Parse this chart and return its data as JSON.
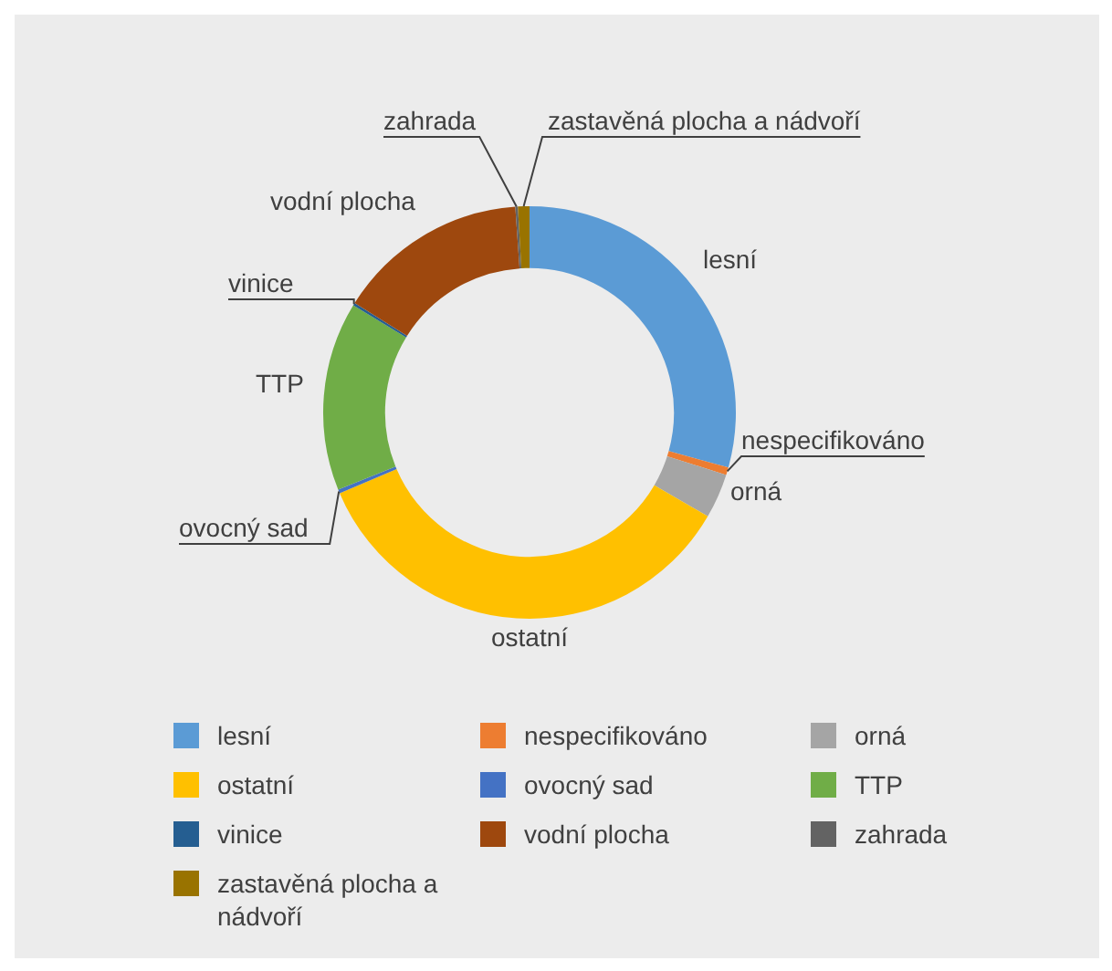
{
  "chart_data": {
    "type": "donut",
    "legend": "bottom",
    "categories": [
      "lesní",
      "nespecifikováno",
      "orná",
      "ostatní",
      "ovocný sad",
      "TTP",
      "vinice",
      "vodní plocha",
      "zahrada",
      "zastavěná plocha a nádvoří"
    ],
    "values": [
      29.3,
      0.6,
      3.5,
      35.2,
      0.3,
      14.8,
      0.2,
      15.0,
      0.2,
      0.9
    ],
    "colors": [
      "#5b9bd5",
      "#ed7d31",
      "#a5a5a5",
      "#ffc000",
      "#4472c4",
      "#70ad47",
      "#255e91",
      "#9e480e",
      "#636363",
      "#997300"
    ]
  }
}
